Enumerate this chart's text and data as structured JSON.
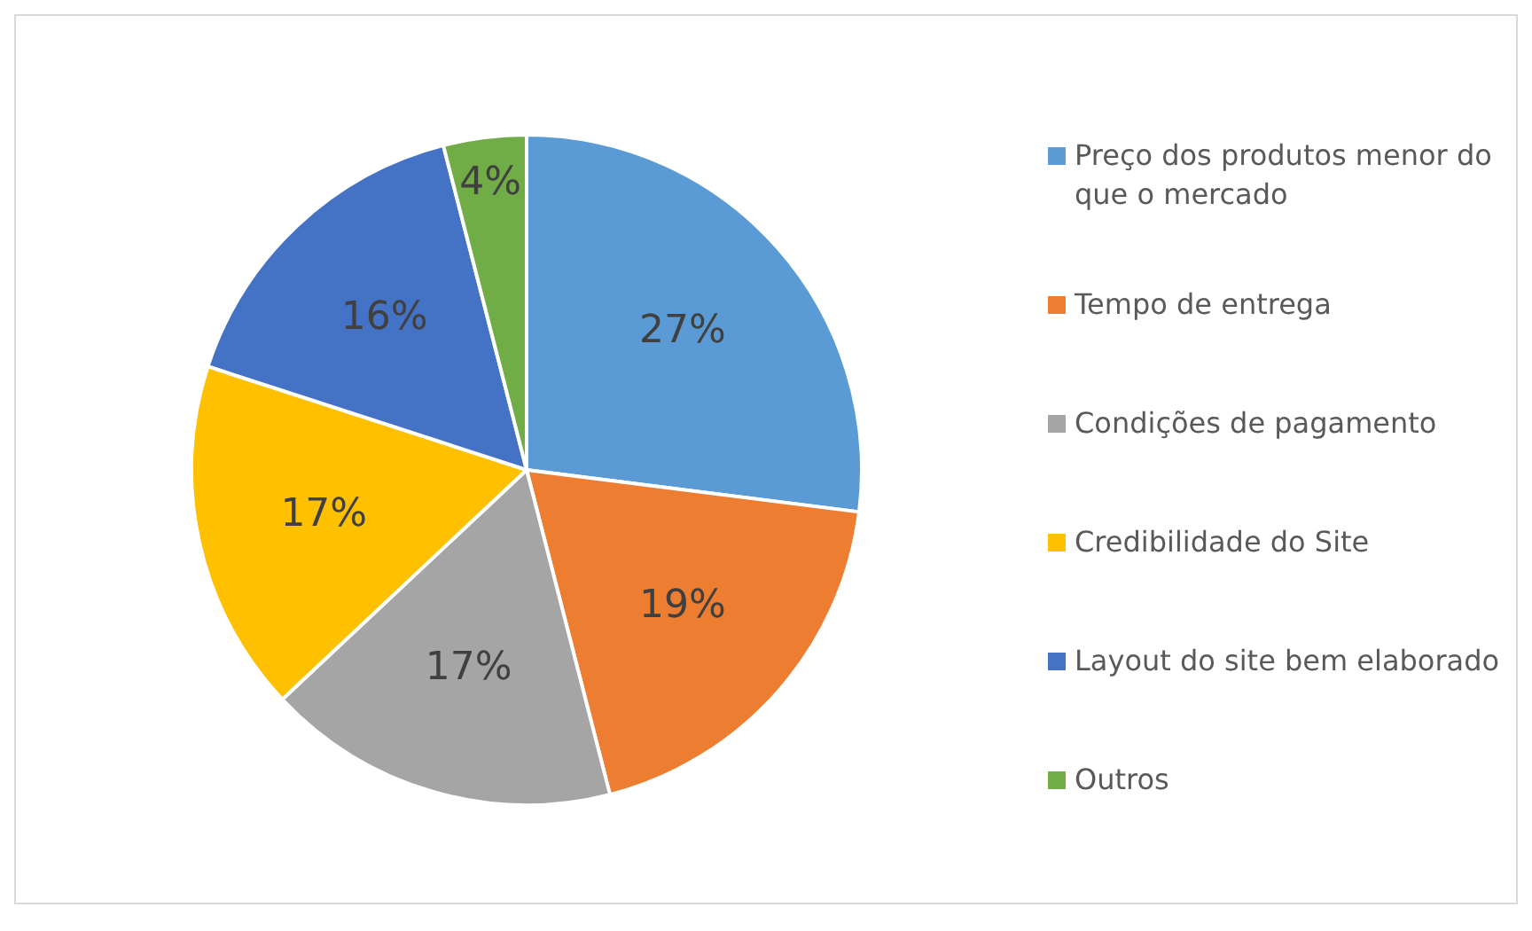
{
  "chart_data": {
    "type": "pie",
    "categories": [
      "Preço dos produtos menor do que o mercado",
      "Tempo de entrega",
      "Condições de pagamento",
      "Credibilidade do Site",
      "Layout do site bem elaborado",
      "Outros"
    ],
    "values": [
      27,
      19,
      17,
      17,
      16,
      4
    ],
    "colors": [
      "#5b9bd5",
      "#ed7d31",
      "#a5a5a5",
      "#ffc000",
      "#4472c4",
      "#70ad47"
    ],
    "value_labels": [
      "27%",
      "19%",
      "17%",
      "17%",
      "16%",
      "4%"
    ],
    "legend": "right"
  }
}
